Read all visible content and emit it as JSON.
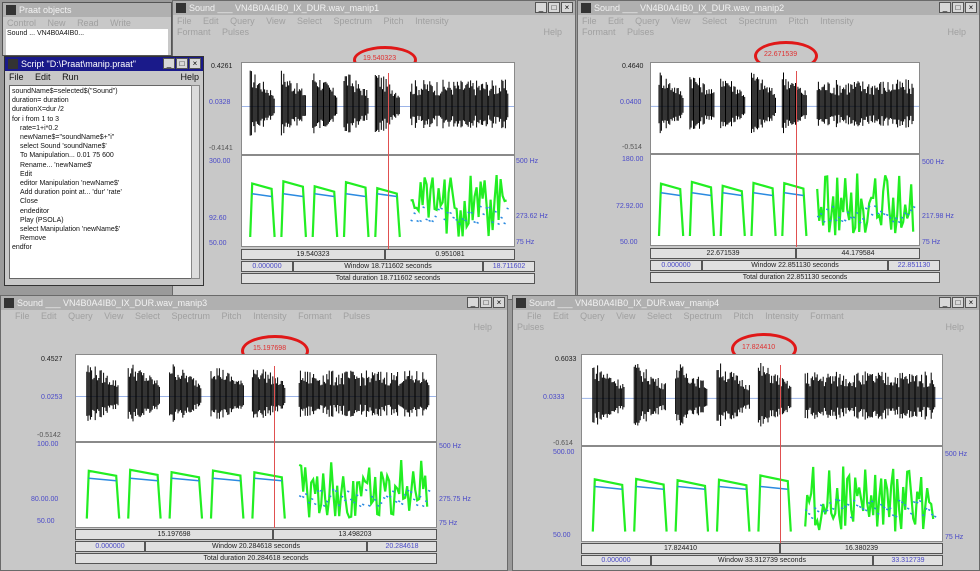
{
  "object_window": {
    "title": "Praat objects",
    "menu": [
      "Control",
      "New",
      "Read",
      "Write"
    ],
    "items": [
      "Sound",
      "...",
      "VN4B0A4IB0..."
    ]
  },
  "script_window": {
    "title": "Script \"D:\\Praat\\manip.praat\"",
    "menu": [
      "File",
      "Edit",
      "Run",
      "Help"
    ],
    "lines": [
      "soundName$=selected$(\"Sound\")",
      "duration= duration",
      "durationX=dur /2",
      "for i from 1 to 3",
      "    rate=1+i*0.2",
      "    newName$=\"soundName$+\"i\"",
      "    select Sound 'soundName$'",
      "    To Manipulation... 0.01 75 600",
      "    Rename... 'newName$'",
      "    Edit",
      "    editor Manipulation 'newName$'",
      "    Add duration point at... 'dur' 'rate'",
      "    Close",
      "    endeditor",
      "    Play (PSOLA)",
      "    select Manipulation 'newName$'",
      "    Remove",
      "endfor"
    ]
  },
  "windows": [
    {
      "id": "top-left",
      "title": "Sound ___ VN4B0A4IB0_IX_DUR.wav_manip1",
      "menu_row1": [
        "File",
        "Edit",
        "Query",
        "View",
        "Select",
        "Spectrum",
        "Pitch",
        "Intensity"
      ],
      "menu_row2": [
        "Formant",
        "Pulses"
      ],
      "help": "Help",
      "cursor_time": "19.540323",
      "y_top": "0.4261",
      "y_mid": "0.0328",
      "y_bottom": "-0.4141",
      "pitch_high": "500 Hz",
      "pitch_val": "273.62 Hz",
      "pitch_low": "75 Hz",
      "pitch_left_high": "300.00",
      "pitch_left_mid": "92.60",
      "pitch_left_low": "50.00",
      "sel_left": "19.540323",
      "sel_right": "0.951081",
      "win_start": "0.000000",
      "window_label": "Window 18.711602 seconds",
      "win_end": "18.711602",
      "total_label": "Total duration 18.711602 seconds"
    },
    {
      "id": "top-right",
      "title": "Sound ___ VN4B0A4IB0_IX_DUR.wav_manip2",
      "menu_row1": [
        "File",
        "Edit",
        "Query",
        "View",
        "Select",
        "Spectrum",
        "Pitch",
        "Intensity"
      ],
      "menu_row2": [
        "Formant",
        "Pulses"
      ],
      "help": "Help",
      "cursor_time": "22.671539",
      "y_top": "0.4640",
      "y_mid": "0.0400",
      "y_bottom": "-0.514",
      "pitch_high": "500 Hz",
      "pitch_val": "217.98 Hz",
      "pitch_low": "75 Hz",
      "pitch_left_high": "180.00",
      "pitch_left_mid": "72.92.00",
      "pitch_left_low": "50.00",
      "sel_left": "22.671539",
      "sel_right": "44.179584",
      "win_start": "0.000000",
      "window_label": "Window 22.851130 seconds",
      "win_end": "22.851130",
      "total_label": "Total duration 22.851130 seconds"
    },
    {
      "id": "bottom-left",
      "title": "Sound ___ VN4B0A4IB0_IX_DUR.wav_manip3",
      "menu_row1": [
        "File",
        "Edit",
        "Query",
        "View",
        "Select",
        "Spectrum",
        "Pitch",
        "Intensity",
        "Formant",
        "Pulses"
      ],
      "menu_row2": [],
      "help": "Help",
      "cursor_time": "15.197698",
      "y_top": "0.4527",
      "y_mid": "0.0253",
      "y_bottom": "-0.5142",
      "pitch_high": "500 Hz",
      "pitch_val": "275.75 Hz",
      "pitch_low": "75 Hz",
      "pitch_left_high": "100.00",
      "pitch_left_mid": "80.00.00",
      "pitch_left_low": "50.00",
      "sel_left": "15.197698",
      "sel_right": "13.498203",
      "win_start": "0.000000",
      "window_label": "Window 20.284618 seconds",
      "win_end": "20.284618",
      "total_label": "Total duration 20.284618 seconds"
    },
    {
      "id": "bottom-right",
      "title": "Sound ___ VN4B0A4IB0_IX_DUR.wav_manip4",
      "menu_row1": [
        "File",
        "Edit",
        "Query",
        "View",
        "Select",
        "Spectrum",
        "Pitch",
        "Intensity",
        "Formant"
      ],
      "menu_row2": [
        "Pulses"
      ],
      "help": "Help",
      "cursor_time": "17.824410",
      "y_top": "0.6033",
      "y_mid": "0.0333",
      "y_bottom": "-0.614",
      "pitch_high": "500 Hz",
      "pitch_val": "",
      "pitch_low": "75 Hz",
      "pitch_left_high": "500.00",
      "pitch_left_mid": "",
      "pitch_left_low": "50.00",
      "sel_left": "17.824410",
      "sel_right": "16.380239",
      "win_start": "0.000000",
      "window_label": "Window 33.312739 seconds",
      "win_end": "33.312739",
      "total_label": ""
    }
  ],
  "colors": {
    "waveform": "#000000",
    "pitch_curve": "#22ee22",
    "intensity_curve": "#2a8ae0",
    "cursor": "#e05050",
    "highlight_ellipse": "#e01818",
    "label_blue": "#4a4ac8"
  }
}
